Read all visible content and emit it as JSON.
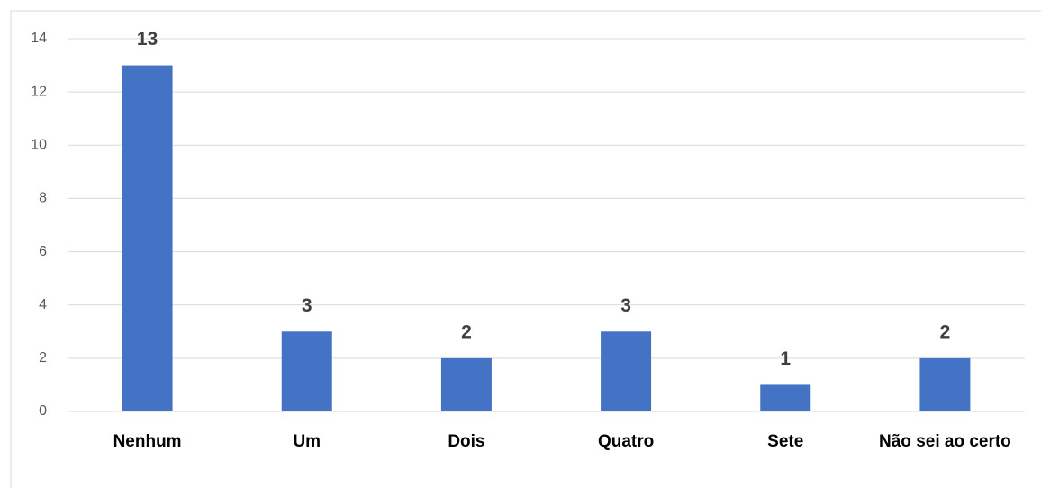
{
  "chart_data": {
    "type": "bar",
    "categories": [
      "Nenhum",
      "Um",
      "Dois",
      "Quatro",
      "Sete",
      "Não sei ao certo"
    ],
    "values": [
      13,
      3,
      2,
      3,
      1,
      2
    ],
    "color": "#4472c4",
    "ylim": [
      0,
      14
    ],
    "yticks": [
      0,
      2,
      4,
      6,
      8,
      10,
      12,
      14
    ],
    "grid": true,
    "data_labels": true
  }
}
